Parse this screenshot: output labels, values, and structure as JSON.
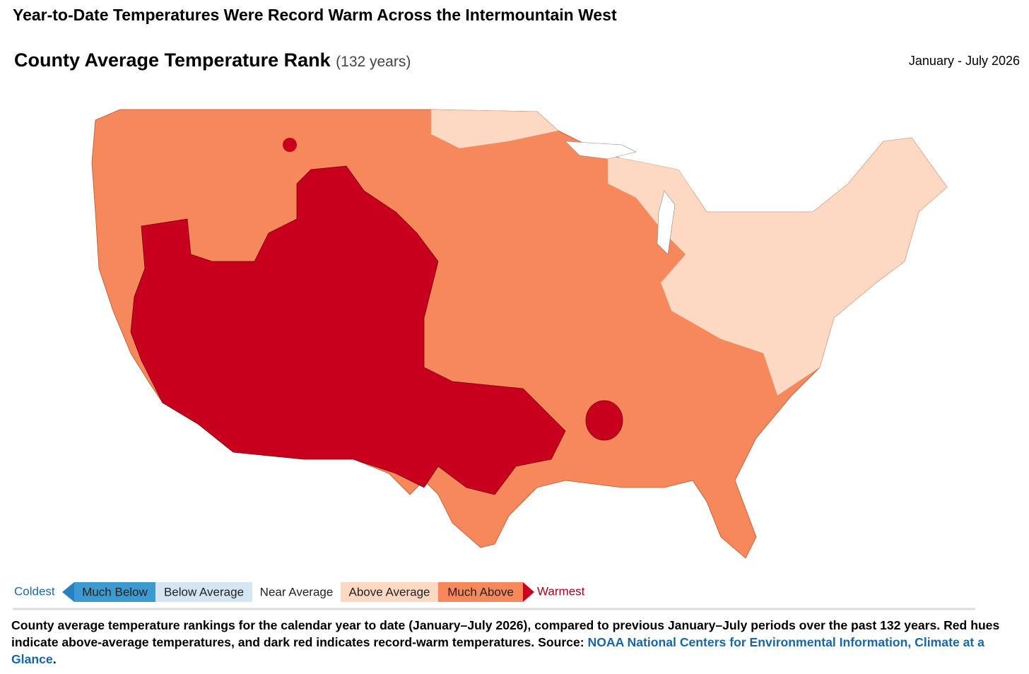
{
  "header": {
    "title": "Year-to-Date Temperatures Were Record Warm Across the Intermountain West"
  },
  "map": {
    "title": "County Average Temperature Rank",
    "subtitle": "(132 years)",
    "period": "January - July 2026"
  },
  "legend": {
    "left_end": "Coldest",
    "items": [
      "Much Below",
      "Below Average",
      "Near Average",
      "Above Average",
      "Much Above"
    ],
    "right_end": "Warmest"
  },
  "caption": {
    "text": "County average temperature rankings for the calendar year to date (January–July 2026), compared to previous January–July periods over the past 132 years. Red hues indicate above-average temperatures, and dark red indicates record-warm temperatures. Source: ",
    "link": "NOAA National Centers for Environmental Information, Climate at a Glance",
    "end": "."
  }
}
